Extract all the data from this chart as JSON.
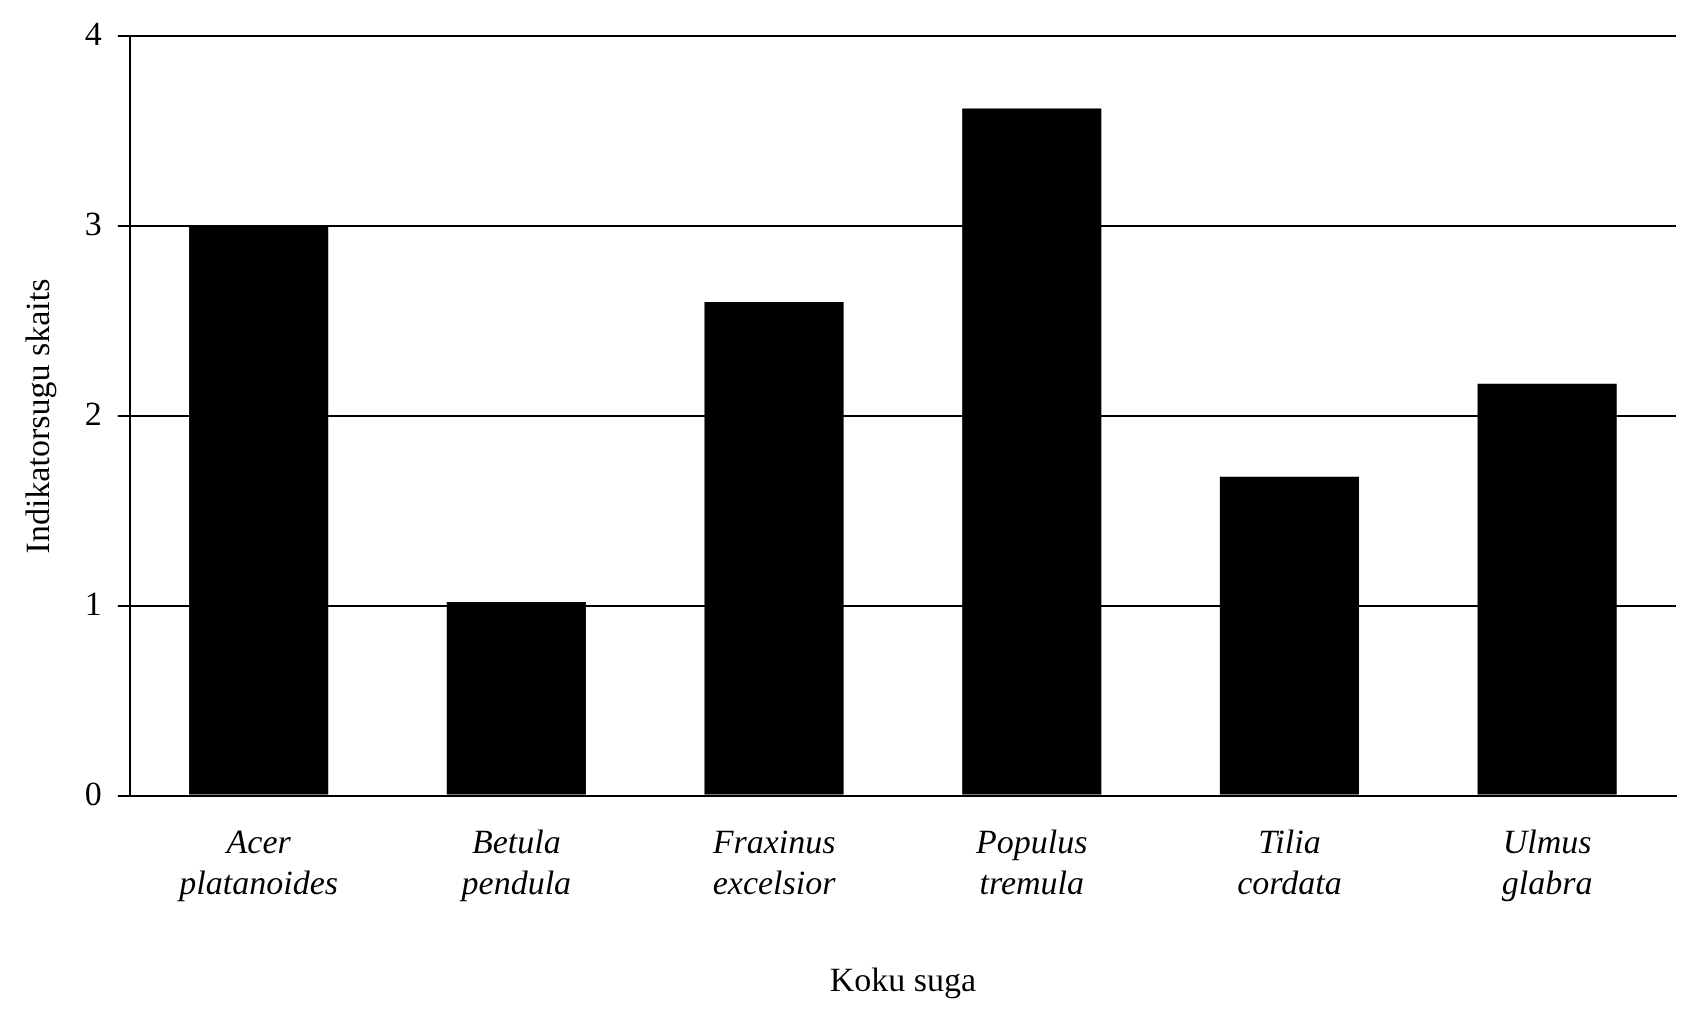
{
  "chart_data": {
    "type": "bar",
    "xlabel": "Koku suga",
    "ylabel": "Indikatorsugu skaits",
    "categories": [
      "Acer platanoides",
      "Betula pendula",
      "Fraxinus excelsior",
      "Populus tremula",
      "Tilia cordata",
      "Ulmus glabra"
    ],
    "values": [
      3.0,
      1.02,
      2.6,
      3.62,
      1.68,
      2.17
    ],
    "color": "#000000",
    "ylim": [
      0,
      4
    ],
    "yticks": [
      0,
      1,
      2,
      3,
      4
    ],
    "grid": "y",
    "legend": false
  }
}
